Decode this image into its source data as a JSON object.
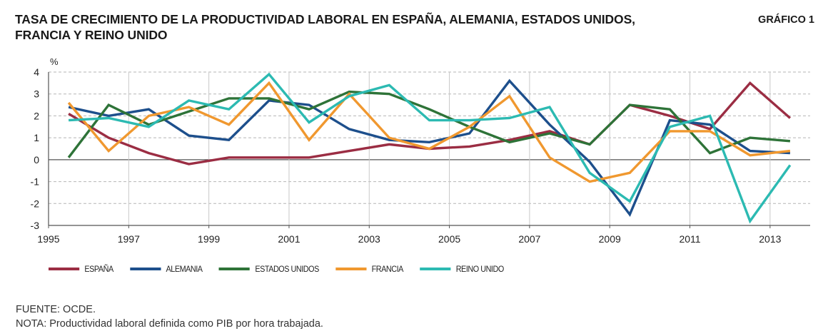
{
  "header": {
    "title_line1": "TASA DE CRECIMIENTO DE LA PRODUCTIVIDAD LABORAL EN ESPAÑA, ALEMANIA, ESTADOS UNIDOS,",
    "title_line2": "FRANCIA Y REINO UNIDO",
    "figure_label": "GRÁFICO 1"
  },
  "footer": {
    "source": "FUENTE: OCDE.",
    "note": "NOTA: Productividad laboral definida como PIB por hora trabajada."
  },
  "chart_data": {
    "type": "line",
    "title": "TASA DE CRECIMIENTO DE LA PRODUCTIVIDAD LABORAL EN ESPAÑA, ALEMANIA, ESTADOS UNIDOS, FRANCIA Y REINO UNIDO",
    "xlabel": "",
    "ylabel": "%",
    "xlim": [
      1995,
      2014
    ],
    "ylim": [
      -3,
      4
    ],
    "x_ticks": [
      1995,
      1997,
      1999,
      2001,
      2003,
      2005,
      2007,
      2009,
      2011,
      2013
    ],
    "y_ticks": [
      -3,
      -2,
      -1,
      0,
      1,
      2,
      3,
      4
    ],
    "grid": true,
    "legend_position": "bottom",
    "x": [
      1995.5,
      1996.5,
      1997.5,
      1998.5,
      1999.5,
      2000.5,
      2001.5,
      2002.5,
      2003.5,
      2004.5,
      2005.5,
      2006.5,
      2007.5,
      2008.5,
      2009.5,
      2010.5,
      2011.5,
      2012.5,
      2013.5
    ],
    "series": [
      {
        "name": "ESPAÑA",
        "color": "#9b2d43",
        "values": [
          2.1,
          1.0,
          0.3,
          -0.2,
          0.1,
          0.1,
          0.1,
          0.4,
          0.7,
          0.5,
          0.6,
          0.9,
          1.3,
          0.7,
          2.5,
          2.0,
          1.4,
          3.5,
          1.9
        ]
      },
      {
        "name": "ALEMANIA",
        "color": "#1d4f8c",
        "values": [
          2.4,
          2.0,
          2.3,
          1.1,
          0.9,
          2.7,
          2.5,
          1.4,
          0.9,
          0.8,
          1.2,
          3.6,
          1.6,
          -0.1,
          -2.5,
          1.8,
          1.6,
          0.4,
          0.3
        ]
      },
      {
        "name": "ESTADOS UNIDOS",
        "color": "#2e7338",
        "values": [
          0.1,
          2.5,
          1.6,
          2.2,
          2.8,
          2.8,
          2.3,
          3.1,
          3.0,
          2.3,
          1.5,
          0.8,
          1.2,
          0.7,
          2.5,
          2.3,
          0.3,
          1.0,
          0.85
        ]
      },
      {
        "name": "FRANCIA",
        "color": "#f0982f",
        "values": [
          2.6,
          0.4,
          2.0,
          2.4,
          1.6,
          3.5,
          0.9,
          3.0,
          1.0,
          0.5,
          1.5,
          2.9,
          0.1,
          -1.0,
          -0.6,
          1.3,
          1.3,
          0.2,
          0.4
        ]
      },
      {
        "name": "REINO UNIDO",
        "color": "#2cbab2",
        "values": [
          1.8,
          1.9,
          1.5,
          2.7,
          2.3,
          3.9,
          1.7,
          2.9,
          3.4,
          1.8,
          1.8,
          1.9,
          2.4,
          -0.6,
          -1.9,
          1.5,
          2.0,
          -2.8,
          -0.25
        ]
      }
    ]
  }
}
